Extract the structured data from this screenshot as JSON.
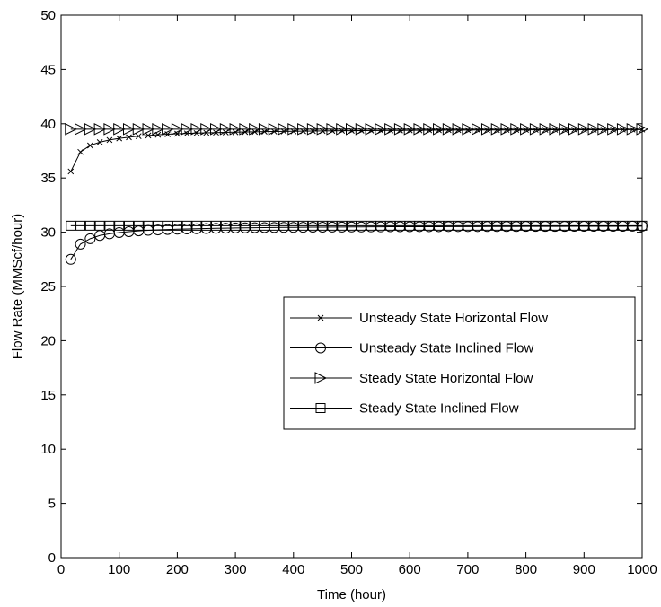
{
  "chart_data": {
    "type": "line",
    "xlabel": "Time (hour)",
    "ylabel": "Flow Rate (MMScf/hour)",
    "xlim": [
      0,
      1000
    ],
    "ylim": [
      0,
      50
    ],
    "x_ticks": [
      0,
      100,
      200,
      300,
      400,
      500,
      600,
      700,
      800,
      900,
      1000
    ],
    "y_ticks": [
      0,
      5,
      10,
      15,
      20,
      25,
      30,
      35,
      40,
      45,
      50
    ],
    "grid": false,
    "legend_position": "center-right",
    "x": [
      16.67,
      33.33,
      50,
      66.67,
      83.33,
      100,
      116.67,
      133.33,
      150,
      166.67,
      183.33,
      200,
      216.67,
      233.33,
      250,
      266.67,
      283.33,
      300,
      316.67,
      333.33,
      350,
      366.67,
      383.33,
      400,
      416.67,
      433.33,
      450,
      466.67,
      483.33,
      500,
      516.67,
      533.33,
      550,
      566.67,
      583.33,
      600,
      616.67,
      633.33,
      650,
      666.67,
      683.33,
      700,
      716.67,
      733.33,
      750,
      766.67,
      783.33,
      800,
      816.67,
      833.33,
      850,
      866.67,
      883.33,
      900,
      916.67,
      933.33,
      950,
      966.67,
      983.33,
      1000
    ],
    "series": [
      {
        "name": "Unsteady State Horizontal Flow",
        "marker": "x",
        "values": [
          35.6,
          37.4,
          38.0,
          38.3,
          38.5,
          38.65,
          38.75,
          38.85,
          38.92,
          38.98,
          39.03,
          39.07,
          39.1,
          39.13,
          39.16,
          39.18,
          39.2,
          39.22,
          39.24,
          39.25,
          39.27,
          39.28,
          39.29,
          39.3,
          39.31,
          39.32,
          39.33,
          39.34,
          39.35,
          39.35,
          39.36,
          39.37,
          39.37,
          39.38,
          39.38,
          39.39,
          39.39,
          39.4,
          39.4,
          39.41,
          39.41,
          39.41,
          39.42,
          39.42,
          39.42,
          39.43,
          39.43,
          39.43,
          39.44,
          39.44,
          39.44,
          39.44,
          39.45,
          39.45,
          39.45,
          39.45,
          39.46,
          39.46,
          39.46,
          39.46
        ]
      },
      {
        "name": "Unsteady State Inclined Flow",
        "marker": "circle",
        "values": [
          27.5,
          28.9,
          29.4,
          29.7,
          29.85,
          29.97,
          30.05,
          30.12,
          30.17,
          30.21,
          30.25,
          30.28,
          30.3,
          30.32,
          30.34,
          30.36,
          30.37,
          30.39,
          30.4,
          30.41,
          30.42,
          30.43,
          30.44,
          30.44,
          30.45,
          30.46,
          30.46,
          30.47,
          30.47,
          30.48,
          30.48,
          30.49,
          30.49,
          30.5,
          30.5,
          30.5,
          30.51,
          30.51,
          30.51,
          30.52,
          30.52,
          30.52,
          30.52,
          30.53,
          30.53,
          30.53,
          30.53,
          30.54,
          30.54,
          30.54,
          30.54,
          30.54,
          30.55,
          30.55,
          30.55,
          30.55,
          30.55,
          30.55,
          30.56,
          30.56
        ]
      },
      {
        "name": "Steady State Horizontal Flow",
        "marker": "triangle-right",
        "values": [
          39.5,
          39.5,
          39.5,
          39.5,
          39.5,
          39.5,
          39.5,
          39.5,
          39.5,
          39.5,
          39.5,
          39.5,
          39.5,
          39.5,
          39.5,
          39.5,
          39.5,
          39.5,
          39.5,
          39.5,
          39.5,
          39.5,
          39.5,
          39.5,
          39.5,
          39.5,
          39.5,
          39.5,
          39.5,
          39.5,
          39.5,
          39.5,
          39.5,
          39.5,
          39.5,
          39.5,
          39.5,
          39.5,
          39.5,
          39.5,
          39.5,
          39.5,
          39.5,
          39.5,
          39.5,
          39.5,
          39.5,
          39.5,
          39.5,
          39.5,
          39.5,
          39.5,
          39.5,
          39.5,
          39.5,
          39.5,
          39.5,
          39.5,
          39.5,
          39.5
        ]
      },
      {
        "name": "Steady State Inclined Flow",
        "marker": "square",
        "values": [
          30.6,
          30.6,
          30.6,
          30.6,
          30.6,
          30.6,
          30.6,
          30.6,
          30.6,
          30.6,
          30.6,
          30.6,
          30.6,
          30.6,
          30.6,
          30.6,
          30.6,
          30.6,
          30.6,
          30.6,
          30.6,
          30.6,
          30.6,
          30.6,
          30.6,
          30.6,
          30.6,
          30.6,
          30.6,
          30.6,
          30.6,
          30.6,
          30.6,
          30.6,
          30.6,
          30.6,
          30.6,
          30.6,
          30.6,
          30.6,
          30.6,
          30.6,
          30.6,
          30.6,
          30.6,
          30.6,
          30.6,
          30.6,
          30.6,
          30.6,
          30.6,
          30.6,
          30.6,
          30.6,
          30.6,
          30.6,
          30.6,
          30.6,
          30.6,
          30.6
        ]
      }
    ]
  },
  "colors": {
    "line": "#000000",
    "background": "#ffffff"
  }
}
